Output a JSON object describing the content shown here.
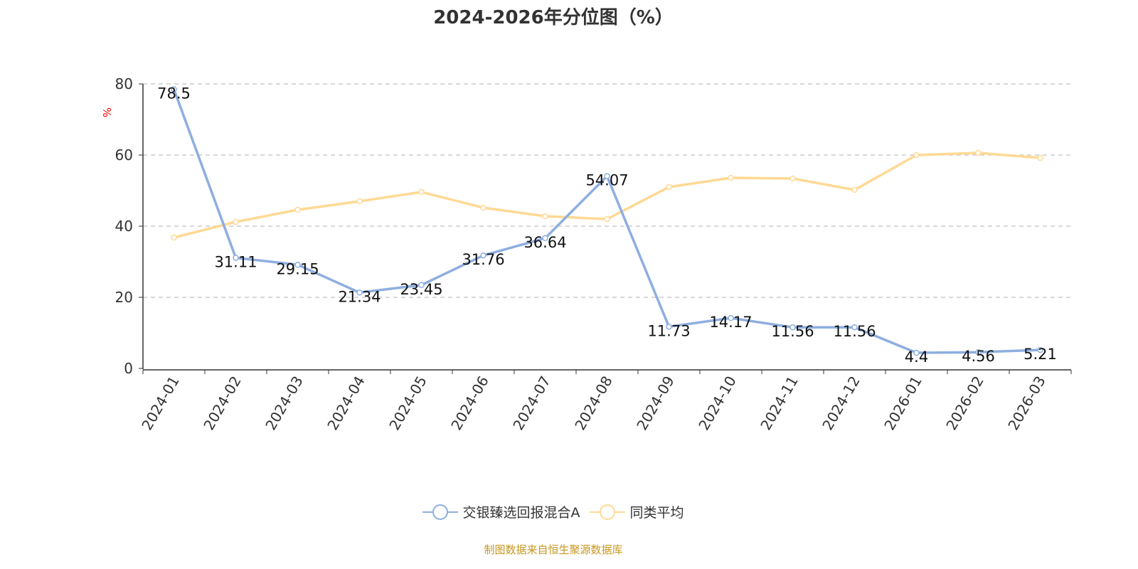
{
  "chart_data": {
    "type": "line",
    "title": "2024-2026年分位图（%）",
    "ylabel": "%",
    "xlabel": "",
    "ylim": [
      0,
      80
    ],
    "yticks": [
      0,
      20,
      40,
      60,
      80
    ],
    "grid": true,
    "legend_position": "bottom",
    "categories": [
      "2024-01",
      "2024-02",
      "2024-03",
      "2024-04",
      "2024-05",
      "2024-06",
      "2024-07",
      "2024-08",
      "2024-09",
      "2024-10",
      "2024-11",
      "2024-12",
      "2026-01",
      "2026-02",
      "2026-03"
    ],
    "series": [
      {
        "name": "交银臻选回报混合A",
        "color": "#8eaee0",
        "show_labels": true,
        "values": [
          78.5,
          31.11,
          29.15,
          21.34,
          23.45,
          31.76,
          36.64,
          54.07,
          11.73,
          14.17,
          11.56,
          11.56,
          4.4,
          4.56,
          5.21
        ]
      },
      {
        "name": "同类平均",
        "color": "#ffd994",
        "show_labels": false,
        "values": [
          36.8,
          41.2,
          44.6,
          47.0,
          49.6,
          45.2,
          42.8,
          42.0,
          51.0,
          53.6,
          53.4,
          50.2,
          60.0,
          60.6,
          59.2
        ]
      }
    ]
  },
  "source": "制图数据来自恒生聚源数据库"
}
